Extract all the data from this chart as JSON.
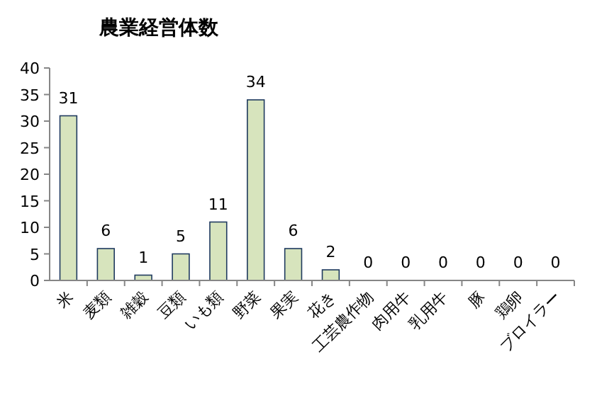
{
  "chart_data": {
    "type": "bar",
    "title": "農業経営体数",
    "categories": [
      "米",
      "麦類",
      "雑穀",
      "豆類",
      "いも類",
      "野菜",
      "果実",
      "花き",
      "工芸農作物",
      "肉用牛",
      "乳用牛",
      "豚",
      "鶏卵",
      "ブロイラー"
    ],
    "values": [
      31,
      6,
      1,
      5,
      11,
      34,
      6,
      2,
      0,
      0,
      0,
      0,
      0,
      0
    ],
    "color": "#d7e4bd",
    "ylim": [
      0,
      40
    ],
    "yticks": [
      0,
      5,
      10,
      15,
      20,
      25,
      30,
      35,
      40
    ],
    "data_labels": true,
    "grid": false
  }
}
